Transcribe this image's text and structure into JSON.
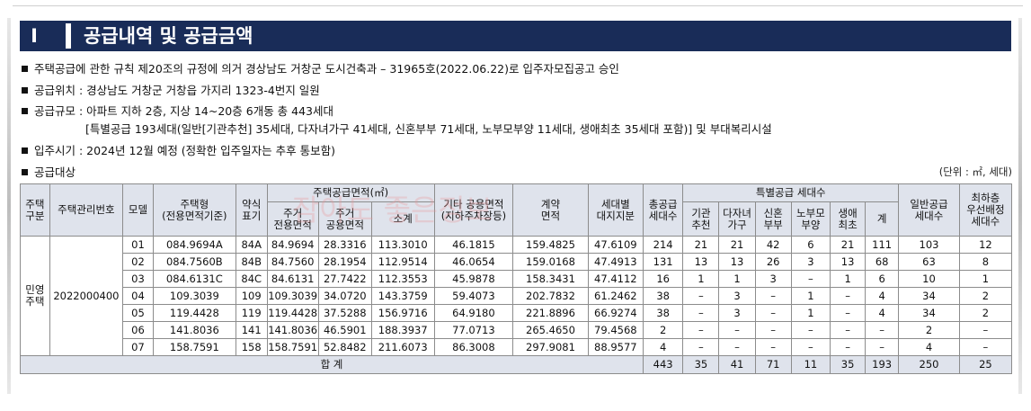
{
  "title": {
    "badge": "I",
    "text": "공급내역 및 공급금액"
  },
  "bullets": [
    "주택공급에 관한 규칙 제20조의 규정에 의거 경상남도 거창군 도시건축과 – 31965호(2022.06.22)로 입주자모집공고 승인",
    "공급위치 : 경상남도 거창군 거창읍 가지리 1323-4번지 일원",
    "공급규모 : 아파트 지하 2층, 지상 14~20층 6개동 총 443세대",
    "[특별공급 193세대(일반[기관추천] 35세대, 다자녀가구 41세대, 신혼부부 71세대, 노부모부양 11세대, 생애최초 35세대 포함)] 및 부대복리시설",
    "입주시기 : 2024년 12월 예정 (정확한 입주일자는 추후 통보함)",
    "공급대상"
  ],
  "unit": "(단위 : ㎡, 세대)",
  "watermark": "잠아도 좋은정보",
  "headers": {
    "house_type": [
      "주택",
      "구분"
    ],
    "mgmt_no": "주택관리번호",
    "model": "모델",
    "housing_type": [
      "주택형",
      "(전용면적기준)"
    ],
    "abbr": [
      "약식",
      "표기"
    ],
    "supply_area": "주택공급면적(㎡)",
    "exclusive": [
      "주거",
      "전용면적"
    ],
    "common": [
      "주거",
      "공용면적"
    ],
    "subtotal": "소계",
    "other_common": [
      "기타 공용면적",
      "(지하주차장등)"
    ],
    "contract_area": [
      "계약",
      "면적"
    ],
    "land_share": [
      "세대별",
      "대지지분"
    ],
    "total_units": [
      "총공급",
      "세대수"
    ],
    "special": "특별공급 세대수",
    "special_cols": [
      [
        "기관",
        "추천"
      ],
      [
        "다자녀",
        "가구"
      ],
      [
        "신혼",
        "부부"
      ],
      [
        "노부모",
        "부양"
      ],
      [
        "생애",
        "최초"
      ],
      [
        "계"
      ]
    ],
    "general": [
      "일반공급",
      "세대수"
    ],
    "priority": [
      "최하층",
      "우선배정",
      "세대수"
    ]
  },
  "group": {
    "type": [
      "민영",
      "주택"
    ],
    "mgmt_no": "2022000400"
  },
  "rows": [
    [
      "01",
      "084.9694A",
      "84A",
      "84.9694",
      "28.3316",
      "113.3010",
      "46.1815",
      "159.4825",
      "47.6109",
      "214",
      "21",
      "21",
      "42",
      "6",
      "21",
      "111",
      "103",
      "12"
    ],
    [
      "02",
      "084.7560B",
      "84B",
      "84.7560",
      "28.1954",
      "112.9514",
      "46.0654",
      "159.0168",
      "47.4913",
      "131",
      "13",
      "13",
      "26",
      "3",
      "13",
      "68",
      "63",
      "8"
    ],
    [
      "03",
      "084.6131C",
      "84C",
      "84.6131",
      "27.7422",
      "112.3553",
      "45.9878",
      "158.3431",
      "47.4112",
      "16",
      "1",
      "1",
      "3",
      "–",
      "1",
      "6",
      "10",
      "1"
    ],
    [
      "04",
      "109.3039",
      "109",
      "109.3039",
      "34.0720",
      "143.3759",
      "59.4073",
      "202.7832",
      "61.2462",
      "38",
      "–",
      "3",
      "–",
      "1",
      "–",
      "4",
      "34",
      "2"
    ],
    [
      "05",
      "119.4428",
      "119",
      "119.4428",
      "37.5288",
      "156.9716",
      "64.9180",
      "221.8896",
      "66.9274",
      "38",
      "–",
      "3",
      "–",
      "1",
      "–",
      "4",
      "34",
      "2"
    ],
    [
      "06",
      "141.8036",
      "141",
      "141.8036",
      "46.5901",
      "188.3937",
      "77.0713",
      "265.4650",
      "79.4568",
      "2",
      "–",
      "–",
      "–",
      "–",
      "–",
      "–",
      "2",
      "–"
    ],
    [
      "07",
      "158.7591",
      "158",
      "158.7591",
      "52.8482",
      "211.6073",
      "86.3008",
      "297.9081",
      "88.9577",
      "4",
      "–",
      "–",
      "–",
      "–",
      "–",
      "–",
      "4",
      "–"
    ]
  ],
  "total": {
    "label": "합 계",
    "values": [
      "443",
      "35",
      "41",
      "71",
      "11",
      "35",
      "193",
      "250",
      "25"
    ]
  }
}
